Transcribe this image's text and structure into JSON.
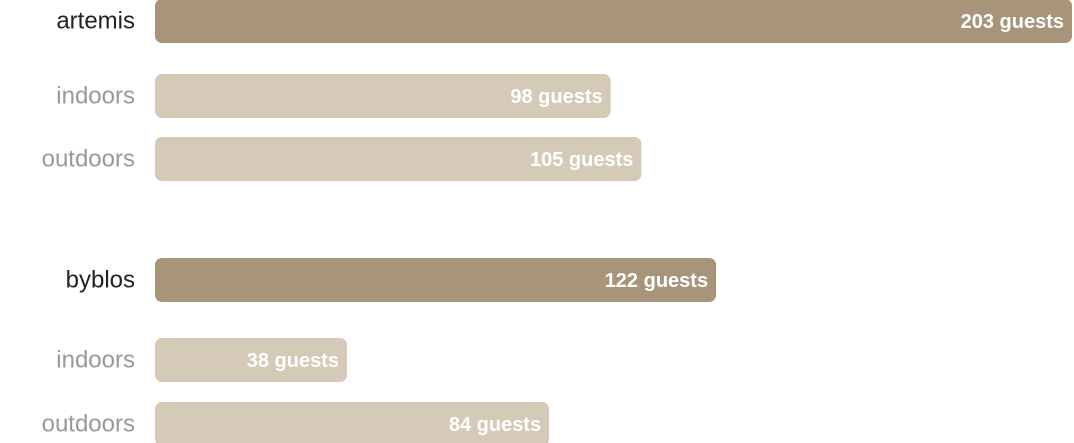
{
  "chart_data": {
    "type": "bar",
    "orientation": "horizontal",
    "categories": [
      "artemis",
      "indoors",
      "outdoors",
      "byblos",
      "indoors",
      "outdoors"
    ],
    "values": [
      203,
      98,
      105,
      122,
      38,
      84
    ],
    "value_labels": [
      "203 guests",
      "98 guests",
      "105 guests",
      "122 guests",
      "38 guests",
      "84 guests"
    ],
    "colors": [
      "#a89478",
      "#d5c9b7",
      "#d5c9b7",
      "#a89478",
      "#d5c9b7",
      "#d5c9b7"
    ]
  }
}
